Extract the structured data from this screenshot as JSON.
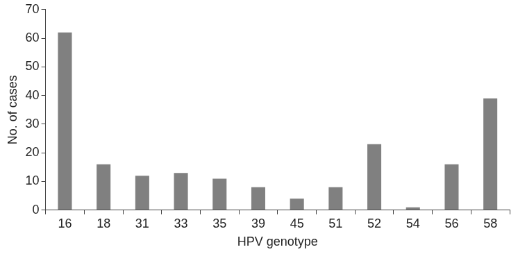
{
  "chart_data": {
    "type": "bar",
    "x_label": "HPV genotype",
    "y_label": "No. of cases",
    "categories": [
      "16",
      "18",
      "31",
      "33",
      "35",
      "39",
      "45",
      "51",
      "52",
      "54",
      "56",
      "58"
    ],
    "values": [
      62,
      16,
      12,
      13,
      11,
      8,
      4,
      8,
      23,
      1,
      16,
      39
    ],
    "color": "#808080",
    "ylim": [
      0,
      70
    ],
    "yticks": [
      0,
      10,
      20,
      30,
      40,
      50,
      60,
      70
    ],
    "grid": false
  }
}
